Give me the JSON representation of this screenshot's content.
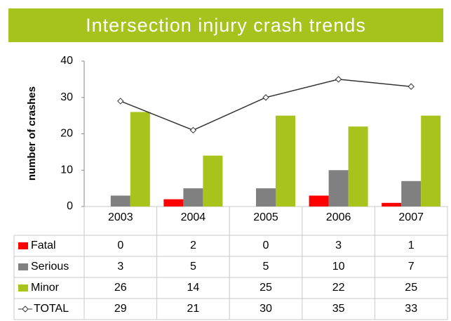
{
  "chart_data": {
    "type": "bar",
    "title": "Intersection injury crash trends",
    "y_label": "number of crashes",
    "categories": [
      "2003",
      "2004",
      "2005",
      "2006",
      "2007"
    ],
    "series": [
      {
        "name": "Fatal",
        "color": "#ff0000",
        "values": [
          0,
          2,
          0,
          3,
          1
        ]
      },
      {
        "name": "Serious",
        "color": "#808080",
        "values": [
          3,
          5,
          5,
          10,
          7
        ]
      },
      {
        "name": "Minor",
        "color": "#a8c41c",
        "values": [
          26,
          14,
          25,
          22,
          25
        ]
      },
      {
        "name": "TOTAL",
        "color": "#333333",
        "type": "line",
        "values": [
          29,
          21,
          30,
          35,
          33
        ]
      }
    ],
    "ylim": [
      0,
      40
    ],
    "yticks": [
      0,
      10,
      20,
      30,
      40
    ],
    "grid": false,
    "banner_color": "#a5c21d"
  }
}
